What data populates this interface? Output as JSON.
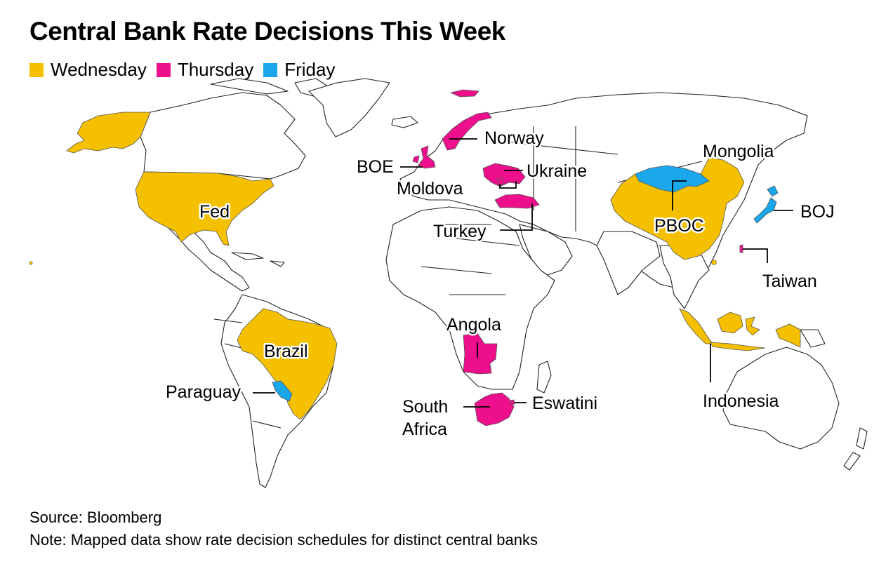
{
  "title": "Central Bank Rate Decisions This Week",
  "colors": {
    "wednesday": "#F5C000",
    "thursday": "#EE0F8C",
    "friday": "#1AA7EC",
    "land_fill": "#FFFFFF",
    "border": "#222222"
  },
  "legend": [
    {
      "label": "Wednesday",
      "color": "#F5C000"
    },
    {
      "label": "Thursday",
      "color": "#EE0F8C"
    },
    {
      "label": "Friday",
      "color": "#1AA7EC"
    }
  ],
  "regions": {
    "wednesday": [
      "United States",
      "Brazil",
      "China",
      "Indonesia"
    ],
    "thursday": [
      "United Kingdom",
      "Norway",
      "Ukraine",
      "Moldova",
      "Turkey",
      "Angola",
      "South Africa",
      "Eswatini",
      "Taiwan"
    ],
    "friday": [
      "Paraguay",
      "Mongolia",
      "Japan"
    ]
  },
  "labels": {
    "fed": "Fed",
    "brazil": "Brazil",
    "paraguay": "Paraguay",
    "boe": "BOE",
    "norway": "Norway",
    "ukraine": "Ukraine",
    "moldova": "Moldova",
    "turkey": "Turkey",
    "angola": "Angola",
    "south_africa_1": "South",
    "south_africa_2": "Africa",
    "eswatini": "Eswatini",
    "mongolia": "Mongolia",
    "pboc": "PBOC",
    "boj": "BOJ",
    "taiwan": "Taiwan",
    "indonesia": "Indonesia"
  },
  "footer": {
    "source": "Source: Bloomberg",
    "note": "Note: Mapped data show rate decision schedules for distinct central banks"
  }
}
